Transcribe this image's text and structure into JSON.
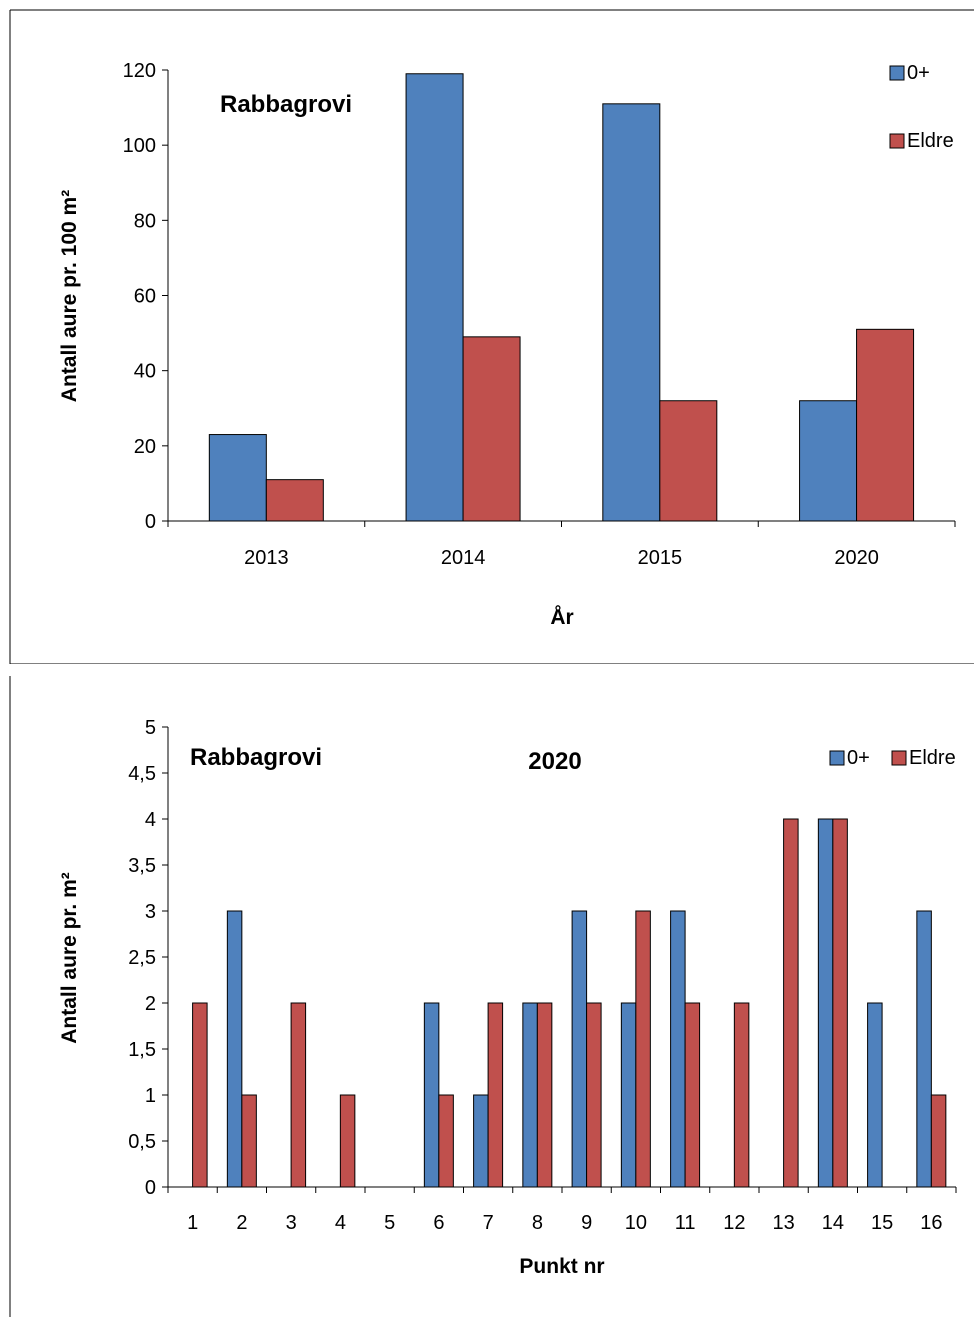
{
  "colors": {
    "series_0plus": "#4F81BD",
    "series_eldre": "#C0504D",
    "axis": "#000000",
    "border": "#000000"
  },
  "chart_data": [
    {
      "type": "bar",
      "title": "Rabbagrovi",
      "subtitle": "",
      "xlabel": "År",
      "ylabel": "Antall aure pr. 100 m²",
      "categories": [
        "2013",
        "2014",
        "2015",
        "2020"
      ],
      "series": [
        {
          "name": "0+",
          "values": [
            23,
            119,
            111,
            32
          ]
        },
        {
          "name": "Eldre",
          "values": [
            11,
            49,
            32,
            51
          ]
        }
      ],
      "ylim": [
        0,
        120
      ],
      "yticks": [
        0,
        20,
        40,
        60,
        80,
        100,
        120
      ],
      "ytick_labels": [
        "0",
        "20",
        "40",
        "60",
        "80",
        "100",
        "120"
      ],
      "grid": false,
      "legend": "top-right, stacked vertically"
    },
    {
      "type": "bar",
      "title": "Rabbagrovi",
      "subtitle": "2020",
      "xlabel": "Punkt nr",
      "ylabel": "Antall aure pr. m²",
      "categories": [
        "1",
        "2",
        "3",
        "4",
        "5",
        "6",
        "7",
        "8",
        "9",
        "10",
        "11",
        "12",
        "13",
        "14",
        "15",
        "16"
      ],
      "series": [
        {
          "name": "0+",
          "values": [
            0,
            3,
            0,
            0,
            0,
            2,
            1,
            2,
            3,
            2,
            3,
            0,
            0,
            4,
            2,
            3
          ]
        },
        {
          "name": "Eldre",
          "values": [
            2,
            1,
            2,
            1,
            0,
            1,
            2,
            2,
            2,
            3,
            2,
            2,
            4,
            4,
            0,
            1
          ]
        }
      ],
      "ylim": [
        0,
        5
      ],
      "yticks": [
        0,
        0.5,
        1,
        1.5,
        2,
        2.5,
        3,
        3.5,
        4,
        4.5,
        5
      ],
      "ytick_labels": [
        "0",
        "0,5",
        "1",
        "1,5",
        "2",
        "2,5",
        "3",
        "3,5",
        "4",
        "4,5",
        "5"
      ],
      "grid": false,
      "legend": "top-right, horizontal"
    }
  ]
}
